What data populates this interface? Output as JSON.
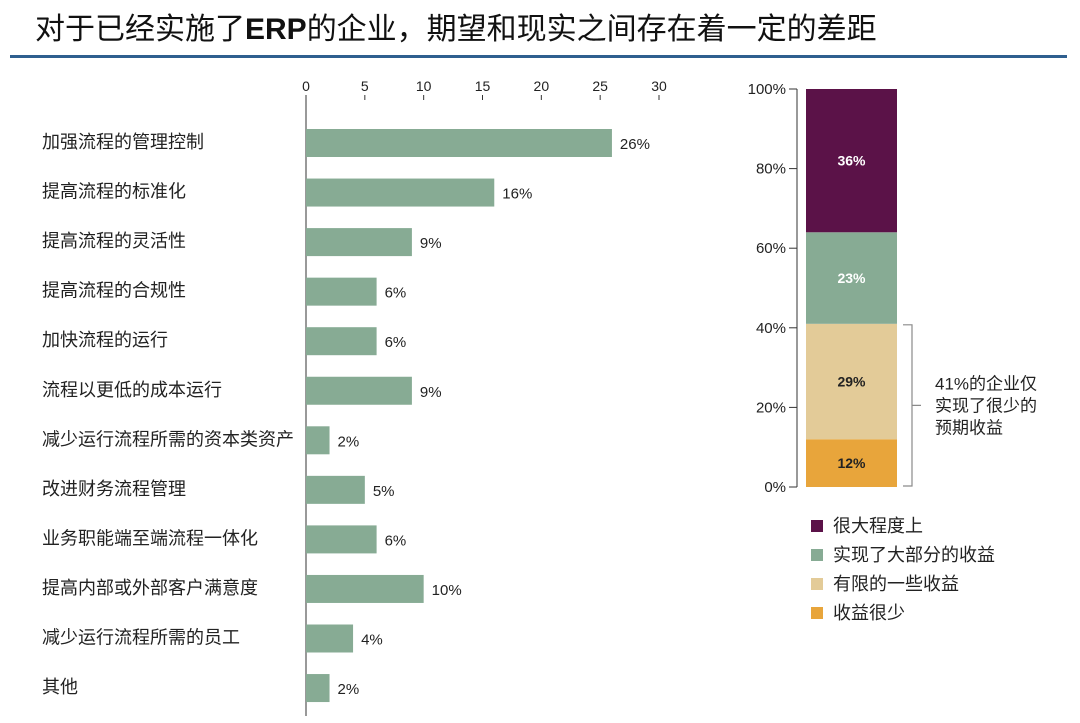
{
  "title": {
    "parts": [
      "对于已经实施了",
      "ERP",
      "的企业，期望和现实之间存在着一定的差距"
    ]
  },
  "colors": {
    "title_rule": "#2F5F8F",
    "axis": "#333333",
    "bracket": "#8A8A8A"
  },
  "chart_data": [
    {
      "type": "bar",
      "orientation": "horizontal",
      "categories": [
        "加强流程的管理控制",
        "提高流程的标准化",
        "提高流程的灵活性",
        "提高流程的合规性",
        "加快流程的运行",
        "流程以更低的成本运行",
        "减少运行流程所需的资本类资产",
        "改进财务流程管理",
        "业务职能端至端流程一体化",
        "提高内部或外部客户满意度",
        "减少运行流程所需的员工",
        "其他"
      ],
      "values": [
        26,
        16,
        9,
        6,
        6,
        9,
        2,
        5,
        6,
        10,
        4,
        2
      ],
      "value_labels": [
        "26%",
        "16%",
        "9%",
        "6%",
        "6%",
        "9%",
        "2%",
        "5%",
        "6%",
        "10%",
        "4%",
        "2%"
      ],
      "xlim": [
        0,
        30
      ],
      "xticks": [
        0,
        5,
        10,
        15,
        20,
        25,
        30
      ],
      "color": "#87AB94",
      "grid": false
    },
    {
      "type": "bar",
      "stacked": true,
      "ylim": [
        0,
        100
      ],
      "yticks": [
        "0%",
        "20%",
        "40%",
        "60%",
        "80%",
        "100%"
      ],
      "series": [
        {
          "name": "很大程度上",
          "values": [
            36
          ],
          "label": "36%",
          "color": "#5B1248",
          "label_color": "#FFFFFF"
        },
        {
          "name": "实现了大部分的收益",
          "values": [
            23
          ],
          "label": "23%",
          "color": "#87AB94",
          "label_color": "#FFFFFF"
        },
        {
          "name": "有限的一些收益",
          "values": [
            29
          ],
          "label": "29%",
          "color": "#E3CB98",
          "label_color": "#222222"
        },
        {
          "name": "收益很少",
          "values": [
            12
          ],
          "label": "12%",
          "color": "#E8A53B",
          "label_color": "#222222"
        }
      ],
      "legend": {
        "position": "bottom"
      },
      "annotation": {
        "lines": [
          "41%的企业仅",
          "实现了很少的",
          "预期收益"
        ]
      },
      "grid": false
    }
  ]
}
